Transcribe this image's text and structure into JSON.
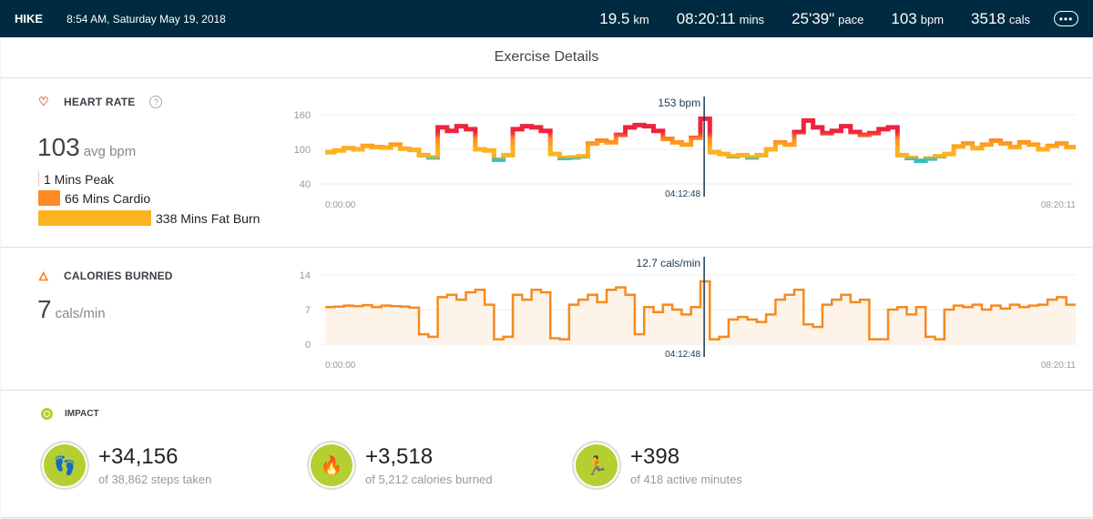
{
  "header": {
    "activity": "HIKE",
    "datetime": "8:54 AM, Saturday May 19, 2018",
    "stats": [
      {
        "value": "19.5",
        "unit": "km"
      },
      {
        "value": "08:20:11",
        "unit": "mins"
      },
      {
        "value": "25'39\"",
        "unit": "pace"
      },
      {
        "value": "103",
        "unit": "bpm"
      },
      {
        "value": "3518",
        "unit": "cals"
      }
    ],
    "more_label": "•••"
  },
  "title": "Exercise Details",
  "heart_rate": {
    "label": "HEART RATE",
    "help": "?",
    "avg": "103",
    "avg_unit": "avg bpm",
    "zones": [
      {
        "label": "1 Mins Peak",
        "minutes": 1,
        "color": "#f7c0bf"
      },
      {
        "label": "66 Mins Cardio",
        "minutes": 66,
        "color": "#fd8a23"
      },
      {
        "label": "338 Mins Fat Burn",
        "minutes": 338,
        "color": "#fdb220"
      }
    ]
  },
  "calories": {
    "label": "CALORIES BURNED",
    "value": "7",
    "unit": "cals/min"
  },
  "chart_data": [
    {
      "type": "line",
      "name": "heart-rate",
      "yticks": [
        "160",
        "100",
        "40"
      ],
      "ylim": [
        40,
        160
      ],
      "xlabels": [
        "0:00:00",
        "08:20:11"
      ],
      "marker": {
        "time": "04:12:48",
        "label": "153 bpm",
        "fraction": 0.505
      },
      "values": [
        95,
        98,
        102,
        100,
        106,
        104,
        103,
        108,
        101,
        99,
        90,
        86,
        138,
        132,
        140,
        135,
        100,
        98,
        82,
        90,
        135,
        140,
        138,
        132,
        92,
        85,
        86,
        88,
        110,
        115,
        112,
        125,
        138,
        142,
        140,
        132,
        118,
        112,
        108,
        120,
        153,
        95,
        92,
        88,
        90,
        86,
        90,
        100,
        112,
        108,
        130,
        150,
        138,
        128,
        132,
        140,
        130,
        125,
        128,
        135,
        138,
        90,
        85,
        80,
        84,
        88,
        92,
        105,
        110,
        102,
        108,
        115,
        110,
        104,
        112,
        108,
        100,
        106,
        110,
        104
      ]
    },
    {
      "type": "area",
      "name": "calories",
      "yticks": [
        "14",
        "7",
        "0"
      ],
      "ylim": [
        0,
        14
      ],
      "xlabels": [
        "0:00:00",
        "08:20:11"
      ],
      "marker": {
        "time": "04:12:48",
        "label": "12.7 cals/min",
        "fraction": 0.505
      },
      "values": [
        7.5,
        7.6,
        7.8,
        7.7,
        7.9,
        7.5,
        7.8,
        7.7,
        7.6,
        7.4,
        2,
        1.5,
        9.5,
        10,
        9,
        10.5,
        11,
        8,
        1,
        1.5,
        10,
        9,
        11,
        10.5,
        1.2,
        1,
        8,
        9,
        10,
        8.5,
        11,
        11.5,
        10,
        2,
        7.5,
        6.5,
        8,
        7,
        6,
        7.5,
        12.7,
        1,
        1.5,
        5,
        5.5,
        5,
        4.5,
        6,
        9,
        10,
        11,
        4,
        3.5,
        8,
        9,
        10,
        8.5,
        9,
        1,
        1,
        7,
        7.5,
        6,
        7.5,
        1.5,
        1,
        7,
        7.8,
        7.5,
        8,
        7,
        7.8,
        7.2,
        8,
        7.5,
        7.8,
        8,
        9,
        9.5,
        8
      ]
    }
  ],
  "impact": {
    "label": "IMPACT",
    "items": [
      {
        "value": "+34,156",
        "sub": "of 38,862 steps taken",
        "icon": "footsteps-icon"
      },
      {
        "value": "+3,518",
        "sub": "of 5,212 calories burned",
        "icon": "flame-icon"
      },
      {
        "value": "+398",
        "sub": "of 418 active minutes",
        "icon": "running-icon"
      }
    ]
  }
}
